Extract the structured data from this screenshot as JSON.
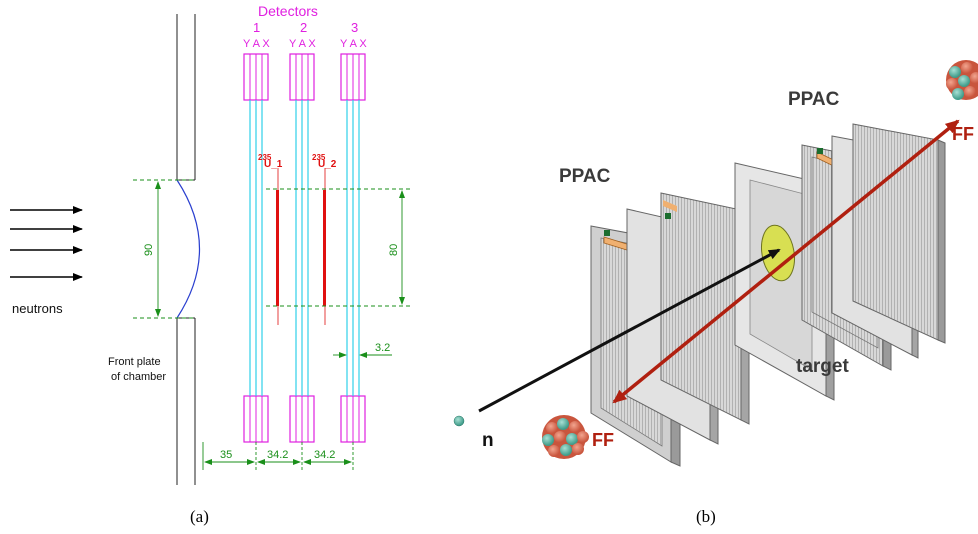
{
  "panel_a": {
    "caption": "(a)",
    "title": "Detectors",
    "detector_numbers": [
      "1",
      "2",
      "3"
    ],
    "plane_labels": [
      "Y A X",
      "Y A X",
      "Y A X"
    ],
    "neutrons_label": "neutrons",
    "front_plate_line1": "Front plate",
    "front_plate_line2": "of chamber",
    "target1_mass": "235",
    "target1_name": "U_1",
    "target2_mass": "235",
    "target2_name": "U_2",
    "dim_window": "90",
    "dim_target": "80",
    "dim_gap": "3.2",
    "dim_bottom": [
      "35",
      "34.2",
      "34.2"
    ]
  },
  "panel_b": {
    "caption": "(b)",
    "ppac_left": "PPAC",
    "ppac_right": "PPAC",
    "target_label": "target",
    "n_label": "n",
    "ff_top": "FF",
    "ff_bottom": "FF"
  },
  "colors": {
    "detector_magenta": "#e020e0",
    "dimension_green": "#1a8f1a",
    "target_red": "#e01010",
    "wire_cyan": "#30d0e8",
    "arrow_darkred": "#b02010"
  }
}
